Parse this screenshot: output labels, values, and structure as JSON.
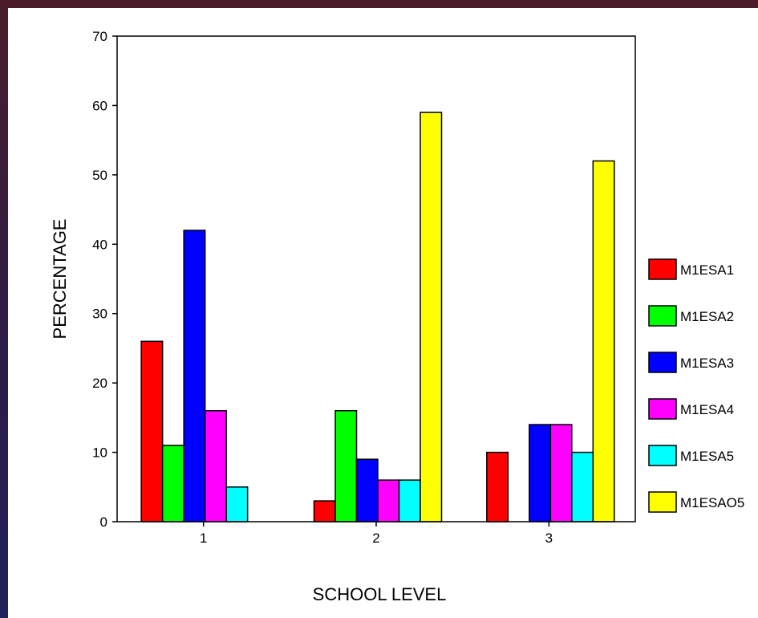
{
  "chart_data": {
    "type": "bar",
    "xlabel": "SCHOOL LEVEL",
    "ylabel": "PERCENTAGE",
    "ylim": [
      0,
      70
    ],
    "yticks": [
      "0",
      "10",
      "20",
      "30",
      "40",
      "50",
      "60",
      "70"
    ],
    "categories": [
      "1",
      "2",
      "3"
    ],
    "legend_position": "right",
    "grid": false,
    "series": [
      {
        "name": "M1ESA1",
        "color": "#ff0000",
        "values": [
          26,
          3,
          10
        ]
      },
      {
        "name": "M1ESA2",
        "color": "#00ff00",
        "values": [
          11,
          16,
          0
        ]
      },
      {
        "name": "M1ESA3",
        "color": "#0000ff",
        "values": [
          42,
          9,
          14
        ]
      },
      {
        "name": "M1ESA4",
        "color": "#ff00ff",
        "values": [
          16,
          6,
          14
        ]
      },
      {
        "name": "M1ESA5",
        "color": "#00ffff",
        "values": [
          5,
          6,
          10
        ]
      },
      {
        "name": "M1ESAO5",
        "color": "#ffff00",
        "values": [
          0,
          59,
          52
        ]
      }
    ]
  }
}
